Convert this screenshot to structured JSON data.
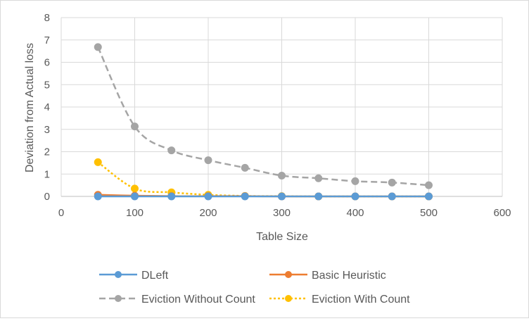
{
  "chart_data": {
    "type": "scatter",
    "title": "",
    "xlabel": "Table Size",
    "ylabel": "Deviation from Actual loss",
    "xlim": [
      0,
      600
    ],
    "ylim": [
      0,
      8
    ],
    "x_ticks": [
      "0",
      "100",
      "200",
      "300",
      "400",
      "500",
      "600"
    ],
    "y_ticks": [
      "0",
      "1",
      "2",
      "3",
      "4",
      "5",
      "6",
      "7",
      "8"
    ],
    "grid": true,
    "legend_position": "bottom",
    "series": [
      {
        "name": "DLeft",
        "color": "#5b9bd5",
        "line": "solid",
        "marker": "circle",
        "x": [
          50,
          100,
          150,
          200,
          250,
          300,
          350,
          400,
          450,
          500
        ],
        "y": [
          0.0,
          0.0,
          0.0,
          0.0,
          0.0,
          0.0,
          0.0,
          0.0,
          0.0,
          0.0
        ]
      },
      {
        "name": "Basic Heuristic",
        "color": "#ed7d31",
        "line": "solid",
        "marker": "circle",
        "x": [
          50,
          100,
          150,
          200,
          250,
          300,
          350,
          400,
          450,
          500
        ],
        "y": [
          0.07,
          0.03,
          0.01,
          0.01,
          0.01,
          0.0,
          0.0,
          0.0,
          0.0,
          0.0
        ]
      },
      {
        "name": "Eviction Without Count",
        "color": "#a5a5a5",
        "line": "dashed",
        "marker": "circle",
        "x": [
          50,
          100,
          150,
          200,
          250,
          300,
          350,
          400,
          450,
          500
        ],
        "y": [
          6.68,
          3.13,
          2.06,
          1.62,
          1.28,
          0.93,
          0.81,
          0.68,
          0.62,
          0.5
        ]
      },
      {
        "name": "Eviction With Count",
        "color": "#ffc000",
        "line": "dotted",
        "marker": "circle",
        "x": [
          50,
          100,
          150,
          200,
          250,
          300,
          350,
          400,
          450,
          500
        ],
        "y": [
          1.53,
          0.35,
          0.18,
          0.07,
          0.02,
          0.01,
          0.0,
          0.0,
          0.0,
          0.0
        ]
      }
    ]
  }
}
